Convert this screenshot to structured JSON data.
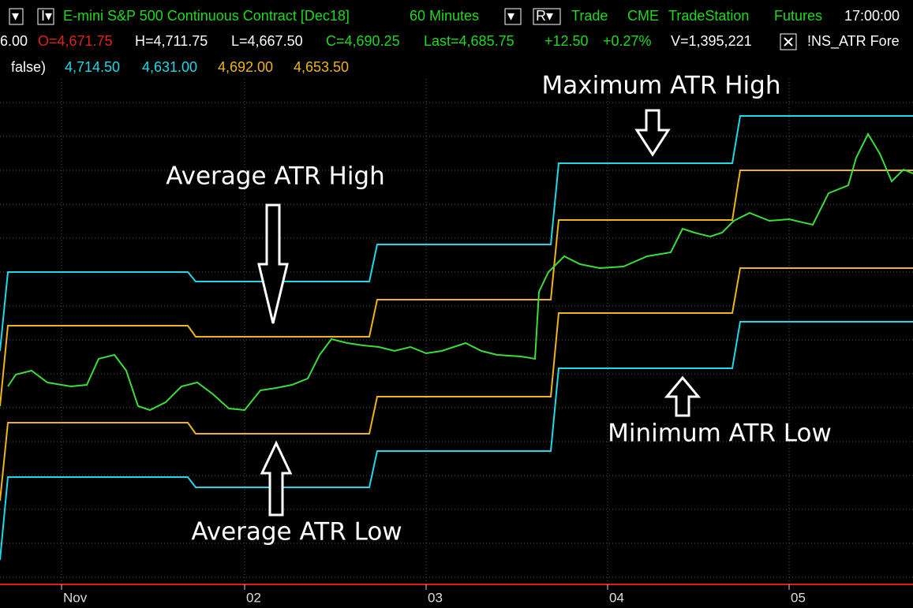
{
  "toolbar": {
    "symbol": "E-mini S&P 500 Continuous Contract [Dec18]",
    "interval": "60 Minutes",
    "data_type": "Trade",
    "exchange": "CME",
    "network": "TradeStation",
    "category": "Futures",
    "time": "17:00:00"
  },
  "quote": {
    "prev": "6.00",
    "open": "O=4,671.75",
    "high": "H=4,711.75",
    "low": "L=4,667.50",
    "close": "C=4,690.25",
    "last": "Last=4,685.75",
    "change": "+12.50",
    "change_pct": "+0.27%",
    "volume": "V=1,395,221",
    "indicator": "!NS_ATR Fore"
  },
  "indicator_values": {
    "params": "false)",
    "values": [
      "4,714.50",
      "4,631.00",
      "4,692.00",
      "4,653.50"
    ]
  },
  "annotations": [
    "Maximum ATR High",
    "Average ATR High",
    "Minimum ATR Low",
    "Average ATR Low"
  ],
  "x_axis": {
    "labels": [
      "Nov",
      "02",
      "03",
      "04",
      "05"
    ]
  }
}
